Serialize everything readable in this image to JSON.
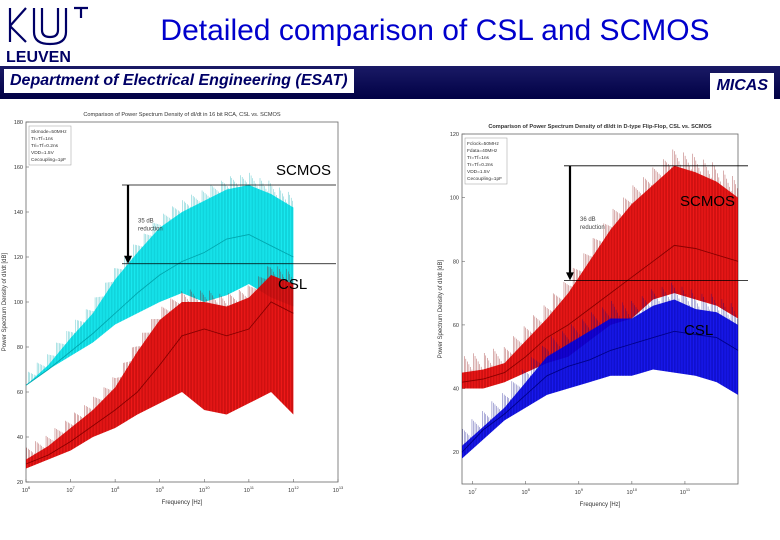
{
  "slide": {
    "title": "Detailed comparison of CSL and SCMOS",
    "department": "Department of Electrical Engineering (ESAT)",
    "group": "MICAS",
    "logo_text": "LEUVEN"
  },
  "colors": {
    "title": "#0000cc",
    "bar": "#000044",
    "scmos_left": "#00e5ee",
    "csl_left": "#ee0000",
    "scmos_right": "#ee0000",
    "csl_right": "#0000ee"
  },
  "annotations": {
    "left_scmos": "SCMOS",
    "left_csl": "CSL",
    "right_scmos": "SCMOS",
    "right_csl": "CSL"
  },
  "chart_data": [
    {
      "type": "line",
      "title": "Comparison of Power Spectrum Density of dI/dt in 16 bit RCA, CSL vs. SCMOS",
      "xlabel": "Frequency [Hz]",
      "ylabel": "Power Spectrum Density of dI/dt [dB]",
      "xscale": "log",
      "xlim_exp": [
        6,
        13
      ],
      "x_tick_labels": [
        "10^6",
        "10^7",
        "10^8",
        "10^9",
        "10^10",
        "10^11",
        "10^12",
        "10^13"
      ],
      "ylim": [
        20,
        180
      ],
      "yticks": [
        20,
        40,
        60,
        80,
        100,
        120,
        140,
        160,
        180
      ],
      "legend_lines": [
        "Skmode=50MHz",
        "Tr=Tf=1ns",
        "Tri=Tf=0.2ns",
        "VDD=1.5V",
        "Cecoupling=1pF"
      ],
      "reduction_label": "35 dB reduction",
      "reduction_db": 35,
      "series": [
        {
          "name": "SCMOS",
          "color": "cyan",
          "x_exp": [
            6.0,
            6.5,
            7.0,
            7.5,
            8.0,
            8.5,
            9.0,
            9.5,
            10.0,
            10.5,
            11.0,
            11.5,
            12.0
          ],
          "values": [
            63,
            70,
            78,
            86,
            95,
            104,
            112,
            118,
            122,
            128,
            130,
            125,
            120
          ],
          "band_high": [
            63,
            72,
            84,
            95,
            110,
            122,
            133,
            140,
            145,
            150,
            152,
            148,
            142
          ],
          "band_low": [
            63,
            70,
            76,
            82,
            90,
            95,
            100,
            104,
            100,
            103,
            108,
            102,
            98
          ]
        },
        {
          "name": "CSL",
          "color": "red",
          "x_exp": [
            6.0,
            6.5,
            7.0,
            7.5,
            8.0,
            8.5,
            9.0,
            9.5,
            10.0,
            10.5,
            11.0,
            11.5,
            12.0
          ],
          "values": [
            28,
            32,
            38,
            45,
            52,
            60,
            72,
            85,
            88,
            85,
            88,
            100,
            95
          ],
          "band_high": [
            30,
            36,
            44,
            52,
            62,
            78,
            92,
            100,
            100,
            98,
            102,
            112,
            108
          ],
          "band_low": [
            26,
            30,
            34,
            40,
            44,
            50,
            55,
            60,
            52,
            50,
            55,
            60,
            50
          ]
        }
      ]
    },
    {
      "type": "line",
      "title": "Comparison of Power Spectrum Density of dI/dt in D-type Flip-Flop, CSL vs. SCMOS",
      "xlabel": "Frequency [Hz]",
      "ylabel": "Power Spectrum Density of dI/dt [dB]",
      "xscale": "log",
      "xlim_exp": [
        6.8,
        12.0
      ],
      "x_tick_labels": [
        "10^7",
        "10^8",
        "10^9",
        "10^10",
        "10^11"
      ],
      "ylim": [
        10,
        120
      ],
      "yticks": [
        20,
        40,
        60,
        80,
        100,
        120
      ],
      "legend_lines": [
        "Fclock=50MHz",
        "Fdata=40MHz",
        "Tr=Tf=1ns",
        "Tr=Tf=0.2ns",
        "VDD=1.5V",
        "Cecoupling=1pF"
      ],
      "reduction_label": "36 dB reduction",
      "reduction_db": 36,
      "series": [
        {
          "name": "SCMOS",
          "color": "red",
          "x_exp": [
            6.8,
            7.2,
            7.6,
            8.0,
            8.4,
            8.8,
            9.2,
            9.6,
            10.0,
            10.4,
            10.8,
            11.2,
            11.6,
            12.0
          ],
          "values": [
            42,
            43,
            45,
            50,
            56,
            60,
            65,
            70,
            75,
            80,
            85,
            84,
            82,
            80
          ],
          "band_high": [
            45,
            46,
            48,
            55,
            62,
            70,
            80,
            90,
            98,
            104,
            110,
            108,
            105,
            100
          ],
          "band_low": [
            40,
            40,
            42,
            45,
            48,
            50,
            55,
            60,
            62,
            68,
            70,
            68,
            66,
            62
          ]
        },
        {
          "name": "CSL",
          "color": "blue",
          "x_exp": [
            6.8,
            7.2,
            7.6,
            8.0,
            8.4,
            8.8,
            9.2,
            9.6,
            10.0,
            10.4,
            10.8,
            11.2,
            11.6,
            12.0
          ],
          "values": [
            20,
            27,
            32,
            38,
            44,
            47,
            49,
            52,
            54,
            56,
            58,
            57,
            56,
            52
          ],
          "band_high": [
            22,
            28,
            34,
            42,
            50,
            54,
            58,
            62,
            62,
            66,
            68,
            65,
            64,
            60
          ],
          "band_low": [
            18,
            24,
            30,
            34,
            38,
            40,
            42,
            44,
            44,
            46,
            45,
            44,
            42,
            38
          ]
        }
      ]
    }
  ]
}
